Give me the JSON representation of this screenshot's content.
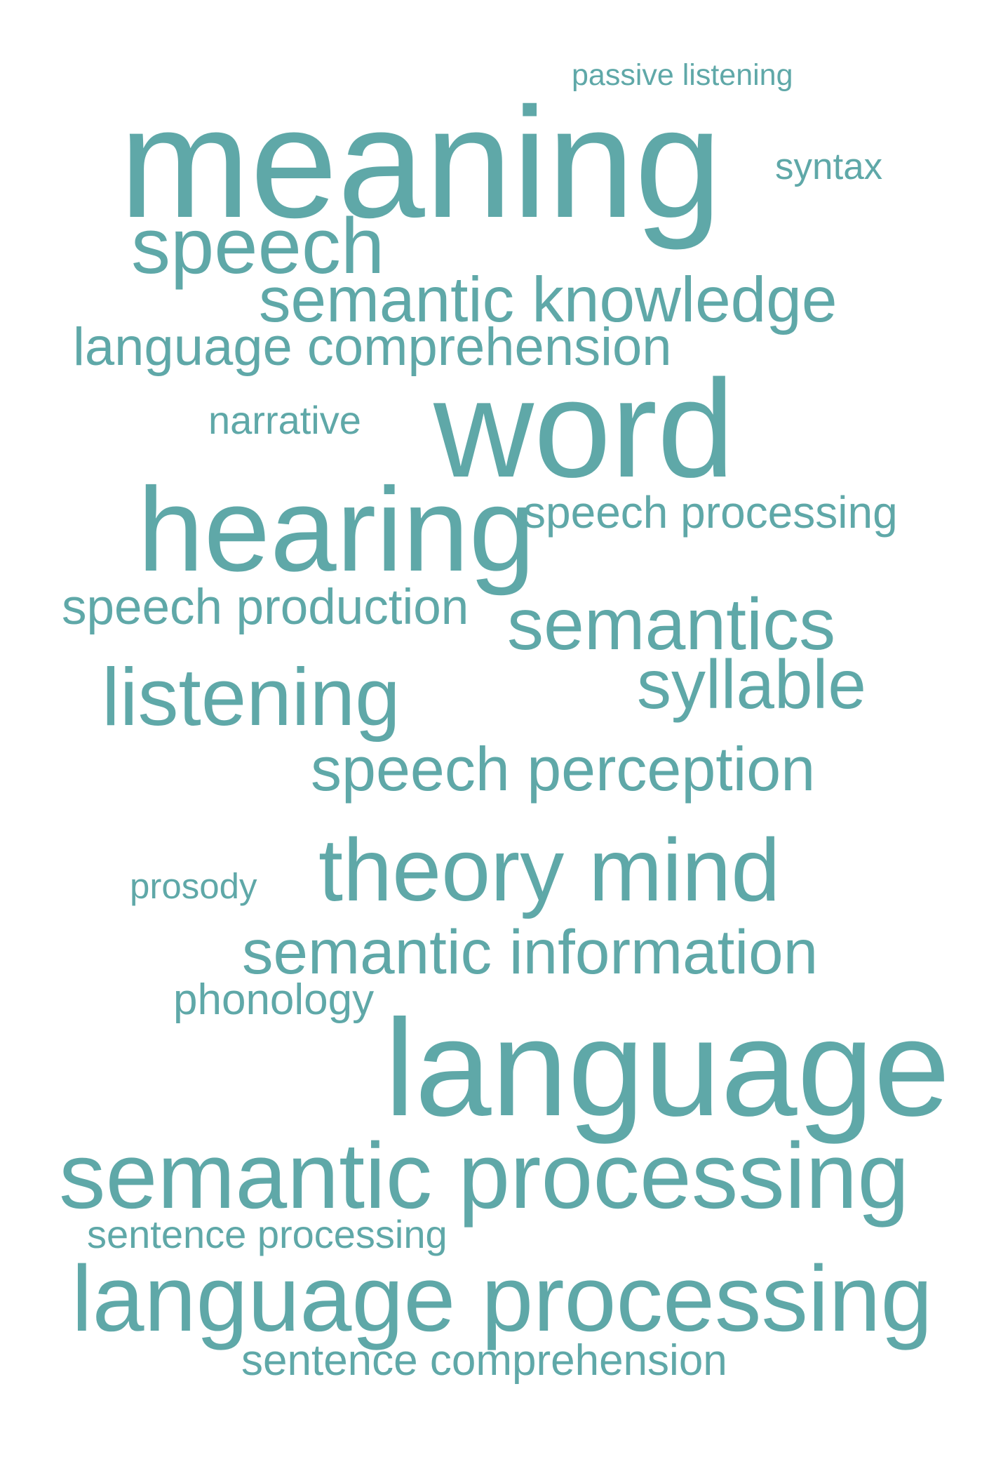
{
  "theme": {
    "word_color": "#5fa8a8",
    "background": "#ffffff"
  },
  "words": {
    "passive_listening": "passive listening",
    "meaning": "meaning",
    "syntax": "syntax",
    "speech": "speech",
    "semantic_knowledge": "semantic knowledge",
    "language_comprehension": "language comprehension",
    "narrative": "narrative",
    "word": "word",
    "hearing": "hearing",
    "speech_processing": "speech processing",
    "speech_production": "speech production",
    "semantics": "semantics",
    "listening": "listening",
    "syllable": "syllable",
    "speech_perception": "speech perception",
    "prosody": "prosody",
    "theory_mind": "theory mind",
    "semantic_information": "semantic information",
    "phonology": "phonology",
    "language": "language",
    "semantic_processing": "semantic processing",
    "sentence_processing": "sentence processing",
    "language_processing": "language processing",
    "sentence_comprehension": "sentence comprehension"
  }
}
